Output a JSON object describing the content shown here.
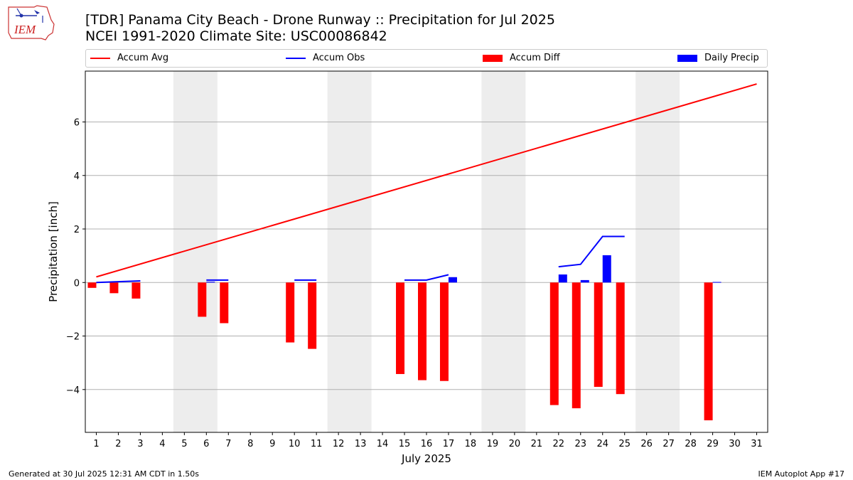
{
  "title_line1": "[TDR] Panama City Beach - Drone Runway :: Precipitation for Jul 2025",
  "title_line2": "NCEI 1991-2020 Climate Site: USC00086842",
  "logo_text": "IEM",
  "footer_left": "Generated at 30 Jul 2025 12:31 AM CDT in 1.50s",
  "footer_right": "IEM Autoplot App #17",
  "colors": {
    "avg": "#ff0000",
    "obs": "#0000ff",
    "diff": "#ff0000",
    "daily": "#0000ff",
    "weekend": "#ededed",
    "grid": "#b0b0b0"
  },
  "legend": {
    "avg": "Accum Avg",
    "obs": "Accum Obs",
    "diff": "Accum Diff",
    "daily": "Daily Precip"
  },
  "chart_data": {
    "type": "bar",
    "xlabel": "July 2025",
    "ylabel": "Precipitation [inch]",
    "ylim": [
      -5.6,
      7.9
    ],
    "xlim": [
      0.5,
      31.5
    ],
    "yticks": [
      -4,
      -2,
      0,
      2,
      4,
      6
    ],
    "ytick_labels": [
      "−4",
      "−2",
      "0",
      "2",
      "4",
      "6"
    ],
    "categories": [
      "1",
      "2",
      "3",
      "4",
      "5",
      "6",
      "7",
      "8",
      "9",
      "10",
      "11",
      "12",
      "13",
      "14",
      "15",
      "16",
      "17",
      "18",
      "19",
      "20",
      "21",
      "22",
      "23",
      "24",
      "25",
      "26",
      "27",
      "28",
      "29",
      "30",
      "31"
    ],
    "grid": "horizontal",
    "legend_position": "top",
    "shaded_weekend_days": [
      [
        5,
        6
      ],
      [
        12,
        13
      ],
      [
        19,
        20
      ],
      [
        26,
        27
      ]
    ],
    "series": [
      {
        "name": "Accum Avg",
        "type": "line",
        "x": [
          1,
          31
        ],
        "values": [
          0.21,
          7.42
        ]
      },
      {
        "name": "Accum Obs",
        "type": "line",
        "segments": [
          {
            "x": [
              1,
              2,
              3
            ],
            "values": [
              0.0,
              0.03,
              0.06
            ]
          },
          {
            "x": [
              6,
              7
            ],
            "values": [
              0.09,
              0.09
            ]
          },
          {
            "x": [
              10,
              11
            ],
            "values": [
              0.09,
              0.09
            ]
          },
          {
            "x": [
              15,
              16,
              17
            ],
            "values": [
              0.09,
              0.09,
              0.29
            ]
          },
          {
            "x": [
              22,
              23,
              24,
              25
            ],
            "values": [
              0.59,
              0.68,
              1.72,
              1.72
            ]
          }
        ]
      },
      {
        "name": "Accum Diff",
        "type": "bar",
        "x": [
          1,
          2,
          3,
          6,
          7,
          10,
          11,
          15,
          16,
          17,
          22,
          23,
          24,
          25,
          29
        ],
        "values": [
          -0.2,
          -0.4,
          -0.6,
          -1.28,
          -1.52,
          -2.24,
          -2.48,
          -3.42,
          -3.65,
          -3.68,
          -4.58,
          -4.7,
          -3.9,
          -4.17,
          -5.15
        ]
      },
      {
        "name": "Daily Precip",
        "type": "bar",
        "x": [
          6,
          17,
          22,
          23,
          24,
          29
        ],
        "values": [
          0.03,
          0.2,
          0.3,
          0.09,
          1.02,
          0.02
        ]
      }
    ]
  }
}
